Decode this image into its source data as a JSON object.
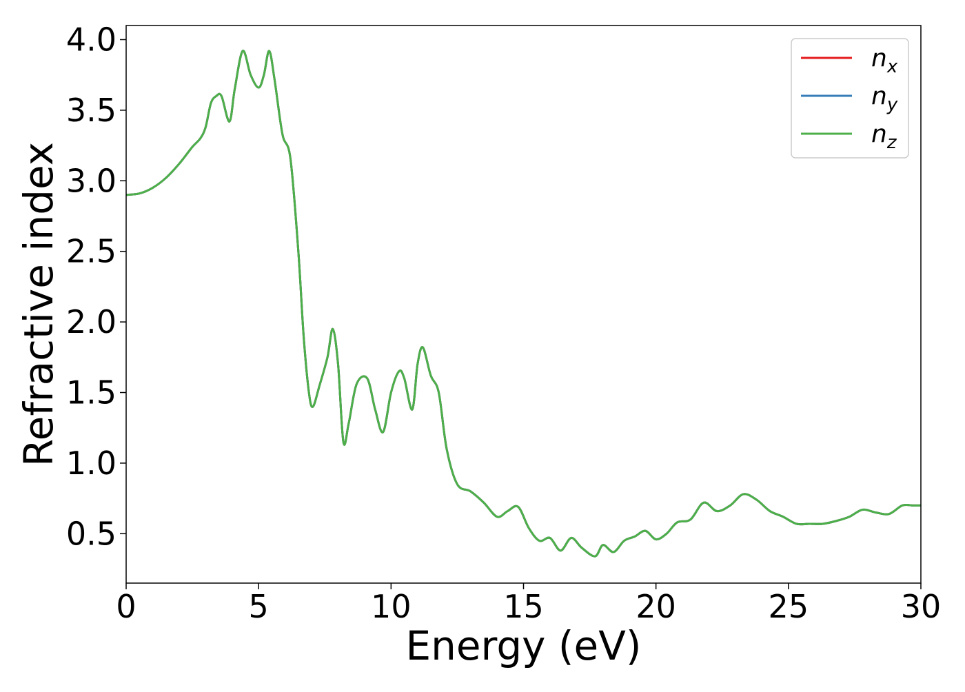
{
  "chart_data": {
    "type": "line",
    "title": "",
    "xlabel": "Energy (eV)",
    "ylabel": "Refractive index",
    "xlim": [
      0,
      30
    ],
    "ylim": [
      0.15,
      4.1
    ],
    "x_ticks": [
      "0",
      "5",
      "10",
      "15",
      "20",
      "25",
      "30"
    ],
    "y_ticks": [
      "0.5",
      "1.0",
      "1.5",
      "2.0",
      "2.5",
      "3.0",
      "3.5",
      "4.0"
    ],
    "grid": false,
    "legend_position": "top-right",
    "colors": {
      "nx": "#e41a1c",
      "ny": "#377eb8",
      "nz": "#4daf4a"
    },
    "legend": [
      {
        "key": "nx",
        "base": "n",
        "sub": "x"
      },
      {
        "key": "ny",
        "base": "n",
        "sub": "y"
      },
      {
        "key": "nz",
        "base": "n",
        "sub": "z"
      }
    ],
    "x": [
      0,
      0.5,
      1,
      1.5,
      2,
      2.5,
      2.8,
      3,
      3.2,
      3.4,
      3.6,
      3.9,
      4.1,
      4.4,
      4.7,
      5,
      5.2,
      5.4,
      5.6,
      5.9,
      6.2,
      6.5,
      6.7,
      6.9,
      7.05,
      7.3,
      7.6,
      7.8,
      8,
      8.2,
      8.4,
      8.7,
      9.1,
      9.4,
      9.7,
      10,
      10.3,
      10.5,
      10.8,
      11,
      11.2,
      11.5,
      11.8,
      12.1,
      12.5,
      13,
      13.5,
      14,
      14.4,
      14.8,
      15.2,
      15.6,
      16,
      16.4,
      16.8,
      17.2,
      17.7,
      18,
      18.4,
      18.8,
      19.2,
      19.6,
      20,
      20.4,
      20.8,
      21.3,
      21.8,
      22.3,
      22.8,
      23.3,
      23.8,
      24.3,
      24.8,
      25.3,
      25.8,
      26.3,
      26.8,
      27.3,
      27.8,
      28.3,
      28.8,
      29.3,
      29.7,
      30
    ],
    "series": [
      {
        "name": "nx",
        "values": [
          2.9,
          2.91,
          2.95,
          3.02,
          3.12,
          3.24,
          3.3,
          3.38,
          3.55,
          3.6,
          3.6,
          3.42,
          3.65,
          3.92,
          3.75,
          3.66,
          3.75,
          3.92,
          3.72,
          3.33,
          3.16,
          2.5,
          1.9,
          1.5,
          1.4,
          1.55,
          1.75,
          1.95,
          1.7,
          1.15,
          1.28,
          1.56,
          1.6,
          1.38,
          1.22,
          1.5,
          1.65,
          1.6,
          1.38,
          1.7,
          1.82,
          1.62,
          1.5,
          1.1,
          0.85,
          0.8,
          0.72,
          0.62,
          0.66,
          0.69,
          0.54,
          0.45,
          0.47,
          0.38,
          0.47,
          0.4,
          0.34,
          0.42,
          0.37,
          0.45,
          0.48,
          0.52,
          0.46,
          0.5,
          0.58,
          0.6,
          0.72,
          0.66,
          0.7,
          0.78,
          0.74,
          0.66,
          0.62,
          0.57,
          0.57,
          0.57,
          0.59,
          0.62,
          0.67,
          0.65,
          0.64,
          0.7,
          0.7,
          0.7
        ]
      },
      {
        "name": "ny",
        "values": [
          2.9,
          2.91,
          2.95,
          3.02,
          3.12,
          3.24,
          3.3,
          3.38,
          3.55,
          3.6,
          3.6,
          3.42,
          3.65,
          3.92,
          3.75,
          3.66,
          3.75,
          3.92,
          3.72,
          3.33,
          3.16,
          2.5,
          1.9,
          1.5,
          1.4,
          1.55,
          1.75,
          1.95,
          1.7,
          1.15,
          1.28,
          1.56,
          1.6,
          1.38,
          1.22,
          1.5,
          1.65,
          1.6,
          1.38,
          1.7,
          1.82,
          1.62,
          1.5,
          1.1,
          0.85,
          0.8,
          0.72,
          0.62,
          0.66,
          0.69,
          0.54,
          0.45,
          0.47,
          0.38,
          0.47,
          0.4,
          0.34,
          0.42,
          0.37,
          0.45,
          0.48,
          0.52,
          0.46,
          0.5,
          0.58,
          0.6,
          0.72,
          0.66,
          0.7,
          0.78,
          0.74,
          0.66,
          0.62,
          0.57,
          0.57,
          0.57,
          0.59,
          0.62,
          0.67,
          0.65,
          0.64,
          0.7,
          0.7,
          0.7
        ]
      },
      {
        "name": "nz",
        "values": [
          2.9,
          2.91,
          2.95,
          3.02,
          3.12,
          3.24,
          3.3,
          3.38,
          3.55,
          3.6,
          3.6,
          3.42,
          3.65,
          3.92,
          3.75,
          3.66,
          3.75,
          3.92,
          3.72,
          3.33,
          3.16,
          2.5,
          1.9,
          1.5,
          1.4,
          1.55,
          1.75,
          1.95,
          1.7,
          1.15,
          1.28,
          1.56,
          1.6,
          1.38,
          1.22,
          1.5,
          1.65,
          1.6,
          1.38,
          1.7,
          1.82,
          1.62,
          1.5,
          1.1,
          0.85,
          0.8,
          0.72,
          0.62,
          0.66,
          0.69,
          0.54,
          0.45,
          0.47,
          0.38,
          0.47,
          0.4,
          0.34,
          0.42,
          0.37,
          0.45,
          0.48,
          0.52,
          0.46,
          0.5,
          0.58,
          0.6,
          0.72,
          0.66,
          0.7,
          0.78,
          0.74,
          0.66,
          0.62,
          0.57,
          0.57,
          0.57,
          0.59,
          0.62,
          0.67,
          0.65,
          0.64,
          0.7,
          0.7,
          0.7
        ]
      }
    ]
  }
}
